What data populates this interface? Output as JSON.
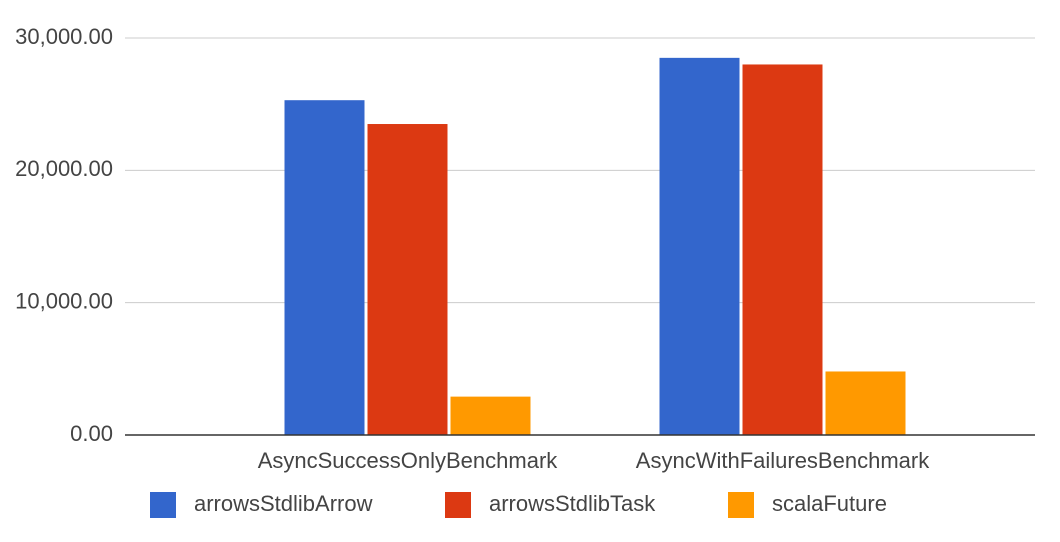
{
  "chart_data": {
    "type": "bar",
    "categories": [
      "AsyncSuccessOnlyBenchmark",
      "AsyncWithFailuresBenchmark"
    ],
    "series": [
      {
        "name": "arrowsStdlibArrow",
        "color": "#3366cc",
        "values": [
          25300,
          28500
        ]
      },
      {
        "name": "arrowsStdlibTask",
        "color": "#dc3912",
        "values": [
          23500,
          28000
        ]
      },
      {
        "name": "scalaFuture",
        "color": "#ff9900",
        "values": [
          2900,
          4800
        ]
      }
    ],
    "ylim": [
      0,
      30000
    ],
    "yticks": [
      {
        "value": 0,
        "label": "0.00"
      },
      {
        "value": 10000,
        "label": "10,000.00"
      },
      {
        "value": 20000,
        "label": "20,000.00"
      },
      {
        "value": 30000,
        "label": "30,000.00"
      }
    ],
    "grid": true,
    "legend": "bottom"
  }
}
